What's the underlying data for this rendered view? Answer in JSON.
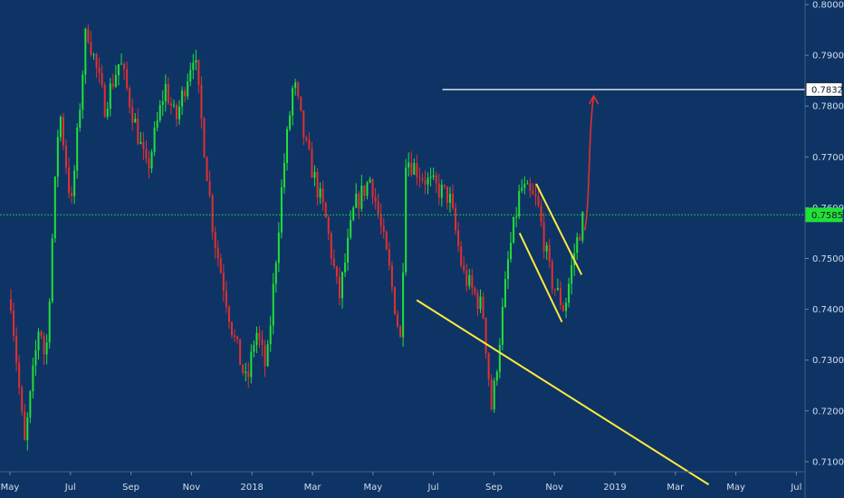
{
  "chart_data": {
    "type": "candlestick",
    "instrument_note": "",
    "x": [
      "May",
      "Jul",
      "Sep",
      "Nov",
      "2018",
      "Mar",
      "May",
      "Jul",
      "Sep",
      "Nov",
      "2019",
      "Mar",
      "May",
      "Jul"
    ],
    "y_ticks": [
      "0.80000",
      "0.79000",
      "0.78000",
      "0.77000",
      "0.76000",
      "0.75000",
      "0.74000",
      "0.73000",
      "0.72000",
      "0.71000"
    ],
    "ylim": [
      0.7075,
      0.8008
    ],
    "current_price": "0.75859",
    "target_price": "0.78327",
    "colors": {
      "background": "#0e3466",
      "up_candle": "#22e036",
      "down_candle": "#e0302e",
      "trendline": "#ffeb3b",
      "target_line": "#ffffff",
      "current_line": "#22e036",
      "projection_arrow": "#e0302e",
      "axis_text": "#d4dde8"
    },
    "price_path": [
      {
        "m": 0,
        "v": 0.742
      },
      {
        "m": 0.45,
        "v": 0.713
      },
      {
        "m": 0.95,
        "v": 0.738
      },
      {
        "m": 1.15,
        "v": 0.729
      },
      {
        "m": 1.6,
        "v": 0.78
      },
      {
        "m": 2.0,
        "v": 0.76
      },
      {
        "m": 2.5,
        "v": 0.796
      },
      {
        "m": 3.1,
        "v": 0.78
      },
      {
        "m": 3.6,
        "v": 0.789
      },
      {
        "m": 4.5,
        "v": 0.767
      },
      {
        "m": 5.1,
        "v": 0.784
      },
      {
        "m": 5.45,
        "v": 0.777
      },
      {
        "m": 6.05,
        "v": 0.791
      },
      {
        "m": 6.7,
        "v": 0.755
      },
      {
        "m": 7.35,
        "v": 0.735
      },
      {
        "m": 7.8,
        "v": 0.725
      },
      {
        "m": 8.1,
        "v": 0.736
      },
      {
        "m": 8.45,
        "v": 0.728
      },
      {
        "m": 9.0,
        "v": 0.767
      },
      {
        "m": 9.35,
        "v": 0.785
      },
      {
        "m": 9.75,
        "v": 0.772
      },
      {
        "m": 10.4,
        "v": 0.758
      },
      {
        "m": 10.85,
        "v": 0.742
      },
      {
        "m": 11.35,
        "v": 0.76
      },
      {
        "m": 11.9,
        "v": 0.766
      },
      {
        "m": 12.5,
        "v": 0.748
      },
      {
        "m": 12.9,
        "v": 0.733
      },
      {
        "m": 13.05,
        "v": 0.77
      },
      {
        "m": 13.8,
        "v": 0.765
      },
      {
        "m": 14.5,
        "v": 0.762
      },
      {
        "m": 14.95,
        "v": 0.747
      },
      {
        "m": 15.6,
        "v": 0.74
      },
      {
        "m": 15.9,
        "v": 0.72
      },
      {
        "m": 16.45,
        "v": 0.75
      },
      {
        "m": 16.85,
        "v": 0.764
      },
      {
        "m": 17.4,
        "v": 0.761
      },
      {
        "m": 17.85,
        "v": 0.746
      },
      {
        "m": 18.3,
        "v": 0.74
      },
      {
        "m": 18.65,
        "v": 0.752
      },
      {
        "m": 18.95,
        "v": 0.7586
      }
    ],
    "trendlines": [
      {
        "from": {
          "m": 13.45,
          "v": 0.7418
        },
        "to": {
          "m": 23.1,
          "v": 0.7055
        }
      },
      {
        "from": {
          "m": 16.85,
          "v": 0.755
        },
        "to": {
          "m": 18.25,
          "v": 0.7375
        }
      },
      {
        "from": {
          "m": 17.4,
          "v": 0.7647
        },
        "to": {
          "m": 18.9,
          "v": 0.7468
        }
      }
    ],
    "target_line_start": {
      "m": 14.3
    },
    "projection_arrow": {
      "from": {
        "m": 19.0,
        "v": 0.7555
      },
      "to": {
        "m": 19.3,
        "v": 0.782
      }
    }
  }
}
